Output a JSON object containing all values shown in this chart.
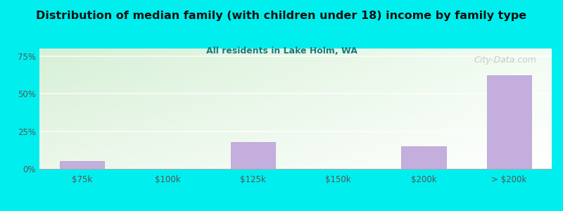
{
  "title": "Distribution of median family (with children under 18) income by family type",
  "subtitle": "All residents in Lake Holm, WA",
  "categories": [
    "$75k",
    "$100k",
    "$125k",
    "$150k",
    "$200k",
    "> $200k"
  ],
  "values": [
    5.0,
    0.0,
    18.0,
    0.0,
    15.0,
    62.0
  ],
  "bar_color": "#C4AEDD",
  "bar_edge_color": "#B09CCC",
  "title_color": "#1a1a1a",
  "subtitle_color": "#1a7a7a",
  "yticks": [
    0,
    25,
    50,
    75
  ],
  "ytick_labels": [
    "0%",
    "25%",
    "50%",
    "75%"
  ],
  "ylim": [
    0,
    80
  ],
  "cyan_bg": "#00EEEE",
  "watermark": "City-Data.com",
  "grid_color": "#e8e8e8"
}
